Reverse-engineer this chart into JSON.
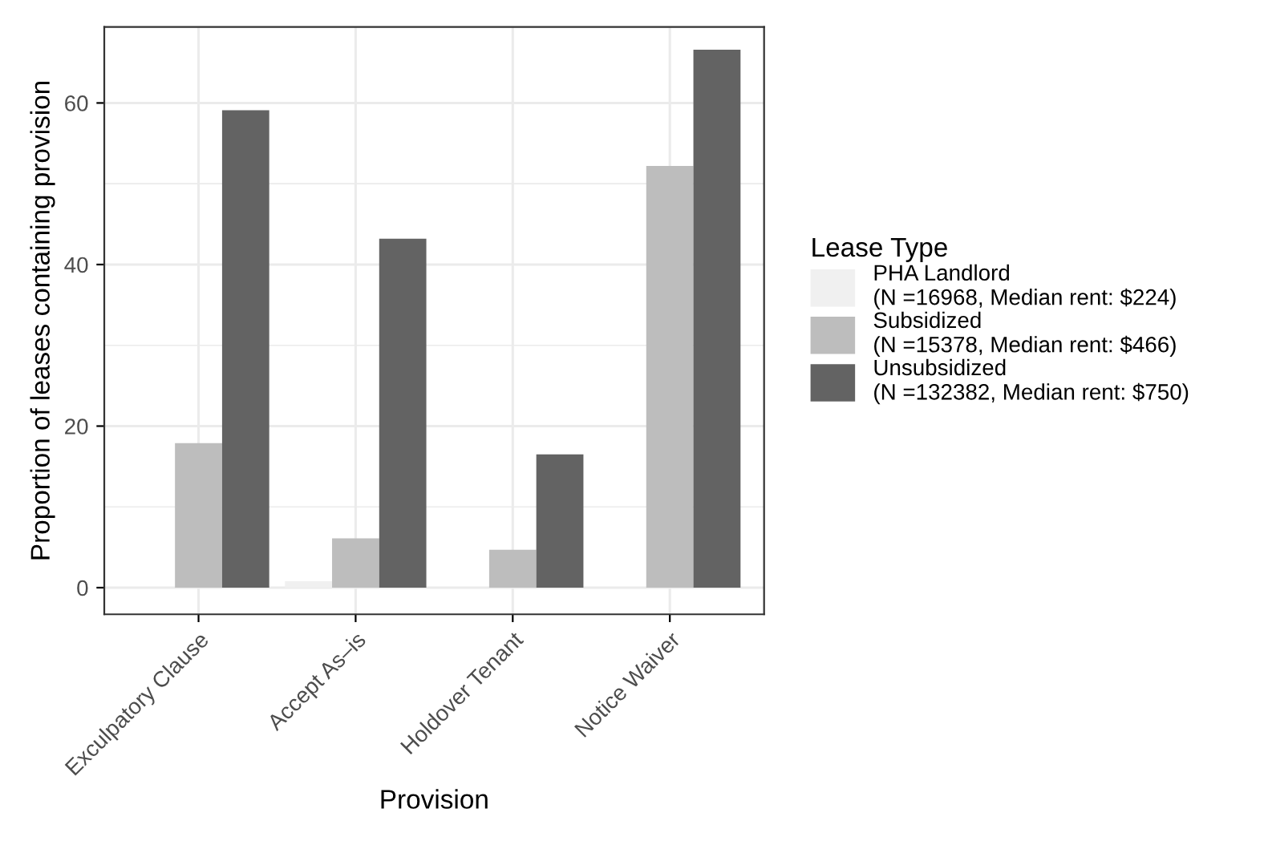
{
  "chart_data": {
    "type": "bar",
    "xlabel": "Provision",
    "ylabel": "Proportion of leases containing provision",
    "legend_title": "Lease Type",
    "categories": [
      "Exculpatory Clause",
      "Accept As–is",
      "Holdover Tenant",
      "Notice Waiver"
    ],
    "series": [
      {
        "name": "PHA Landlord\n(N =16968, Median rent: $224)",
        "color": "#f0f0f0",
        "values": [
          0,
          0.8,
          0,
          0
        ]
      },
      {
        "name": "Subsidized\n(N =15378, Median rent: $466)",
        "color": "#bdbdbd",
        "values": [
          17.9,
          6.1,
          4.7,
          52.2
        ]
      },
      {
        "name": "Unsubsidized\n(N =132382, Median rent: $750)",
        "color": "#636363",
        "values": [
          59.1,
          43.2,
          16.5,
          66.6
        ]
      }
    ],
    "ylim": [
      -3.3,
      69.4
    ],
    "yticks": [
      0,
      20,
      40,
      60
    ],
    "grid": true,
    "legend": "right"
  }
}
